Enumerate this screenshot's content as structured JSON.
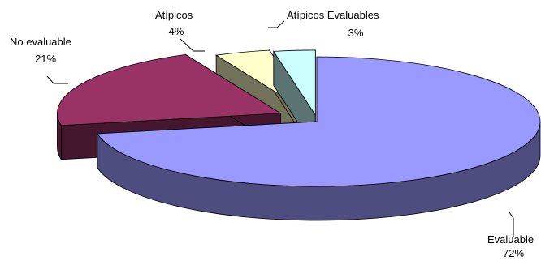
{
  "chart_data": {
    "type": "pie",
    "style": "3d-exploded",
    "title": "",
    "slices": [
      {
        "name": "Evaluable",
        "label": "Evaluable",
        "percent_label": "72%",
        "value": 72,
        "color": "#9999ff"
      },
      {
        "name": "No evaluable",
        "label": "No evaluable",
        "percent_label": "21%",
        "value": 21,
        "color": "#993366"
      },
      {
        "name": "Atípicos",
        "label": "Atípicos",
        "percent_label": "4%",
        "value": 4,
        "color": "#ffffcc"
      },
      {
        "name": "Atípicos Evaluables",
        "label": "Atípicos Evaluables",
        "percent_label": "3%",
        "value": 3,
        "color": "#ccffff"
      }
    ],
    "legend": "none",
    "data_labels": "outside-with-leader-lines"
  }
}
